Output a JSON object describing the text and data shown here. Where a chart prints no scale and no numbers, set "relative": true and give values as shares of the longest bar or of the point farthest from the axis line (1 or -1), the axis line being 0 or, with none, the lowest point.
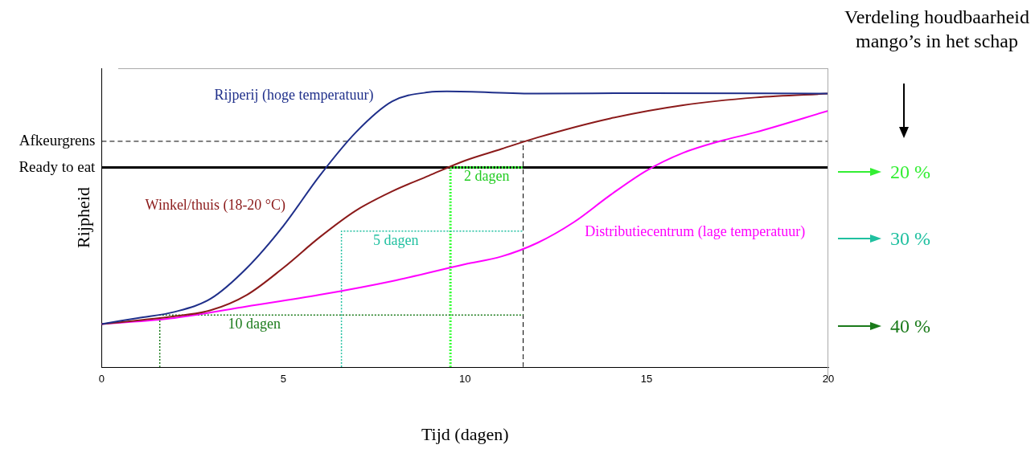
{
  "chart_data": {
    "type": "line",
    "relative": true,
    "xlabel": "Tijd (dagen)",
    "ylabel": "Rijpheid",
    "xlim": [
      0,
      20
    ],
    "xticks": [
      0,
      5,
      10,
      15,
      20
    ],
    "grid": false,
    "legend": false,
    "marker": "none",
    "series": [
      {
        "name": "Rijperij (hoge temperatuur)",
        "color": "#1f2f8a",
        "line_style": "solid",
        "x": [
          0,
          1,
          2,
          3,
          4,
          5,
          6,
          7,
          8,
          9,
          9.5,
          12,
          15,
          20
        ],
        "values": [
          0.156,
          0.178,
          0.2,
          0.248,
          0.36,
          0.512,
          0.694,
          0.852,
          0.964,
          0.997,
          1.0,
          0.992,
          0.994,
          0.992
        ]
      },
      {
        "name": "Winkel/thuis (18-20 °C)",
        "color": "#8b1a1a",
        "line_style": "solid",
        "x": [
          0,
          2,
          3,
          4,
          5,
          6,
          7,
          8,
          9,
          10,
          11,
          12,
          14,
          16,
          18,
          20
        ],
        "values": [
          0.156,
          0.184,
          0.206,
          0.262,
          0.36,
          0.471,
          0.568,
          0.638,
          0.694,
          0.749,
          0.791,
          0.833,
          0.902,
          0.95,
          0.978,
          0.992
        ]
      },
      {
        "name": "Distributiecentrum (lage temperatuur)",
        "color": "#ff00ff",
        "line_style": "solid",
        "x": [
          0,
          2,
          4,
          6,
          8,
          10,
          11,
          12,
          13,
          14,
          15,
          16,
          17,
          18,
          20
        ],
        "values": [
          0.156,
          0.178,
          0.22,
          0.262,
          0.312,
          0.373,
          0.401,
          0.451,
          0.526,
          0.624,
          0.713,
          0.777,
          0.819,
          0.852,
          0.93
        ]
      },
      {
        "color": "#1a7a1a",
        "line_style": "dotted",
        "x": [
          1.6,
          1.6,
          11.6
        ],
        "values": [
          0,
          0.189,
          0.189
        ]
      },
      {
        "color": "#20c0a0",
        "line_style": "dotted",
        "x": [
          6.6,
          6.6,
          11.6
        ],
        "values": [
          0,
          0.493,
          0.493
        ]
      },
      {
        "color": "#33ff33",
        "line_style": "dotted",
        "x": [
          9.6,
          9.6,
          11.6
        ],
        "values": [
          0,
          0.724,
          0.724
        ]
      },
      {
        "color": "#000000",
        "line_style": "dashed",
        "x": [
          11.6,
          11.6
        ],
        "values": [
          0,
          0.819
        ]
      }
    ],
    "ref_lines": [
      {
        "axis": "y",
        "value": 0.819,
        "label": "Afkeurgrens",
        "color": "#000000",
        "line_style": "dashed"
      },
      {
        "axis": "y",
        "value": 0.724,
        "label": "Ready to eat",
        "color": "#000000",
        "line_style": "solid"
      }
    ],
    "annotations": [
      "Verdeling houdbaarheid mango’s in het schap",
      "20 %",
      "30 %",
      "40 %",
      {
        "text": "10 dagen",
        "x": 4.2,
        "y": 0.189
      },
      {
        "text": "5 dagen",
        "x": 8.1,
        "y": 0.493
      },
      {
        "text": "2 dagen",
        "x": 10.6,
        "y": 0.724
      }
    ]
  }
}
